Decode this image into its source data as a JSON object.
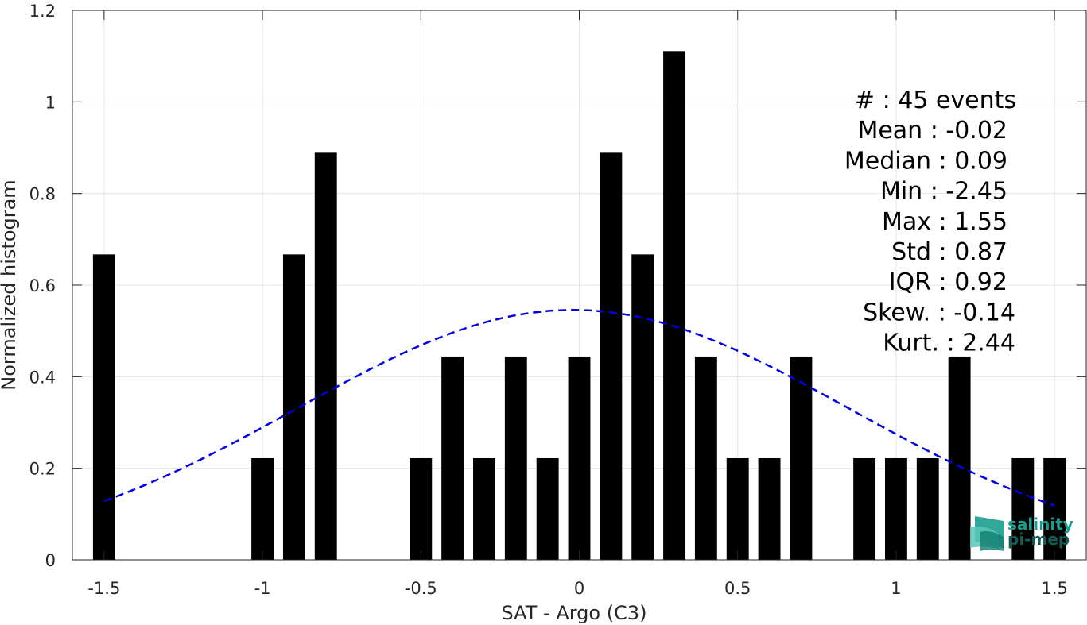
{
  "chart_data": {
    "type": "bar",
    "xlabel": "SAT - Argo (C3)",
    "ylabel": "Normalized histogram",
    "xlim": [
      -1.6,
      1.6
    ],
    "ylim": [
      0,
      1.2
    ],
    "xticks": [
      -1.5,
      -1,
      -0.5,
      0,
      0.5,
      1,
      1.5
    ],
    "xtick_labels": [
      "-1.5",
      "-1",
      "-0.5",
      "0",
      "0.5",
      "1",
      "1.5"
    ],
    "yticks": [
      0,
      0.2,
      0.4,
      0.6,
      0.8,
      1,
      1.2
    ],
    "ytick_labels": [
      "0",
      "0.2",
      "0.4",
      "0.6",
      "0.8",
      "1",
      "1.2"
    ],
    "grid": true,
    "bar_width": 0.07,
    "bars": [
      {
        "x": -1.5,
        "value": 0.667
      },
      {
        "x": -1.0,
        "value": 0.222
      },
      {
        "x": -0.9,
        "value": 0.667
      },
      {
        "x": -0.8,
        "value": 0.889
      },
      {
        "x": -0.5,
        "value": 0.222
      },
      {
        "x": -0.4,
        "value": 0.444
      },
      {
        "x": -0.3,
        "value": 0.222
      },
      {
        "x": -0.2,
        "value": 0.444
      },
      {
        "x": -0.1,
        "value": 0.222
      },
      {
        "x": 0.0,
        "value": 0.444
      },
      {
        "x": 0.1,
        "value": 0.889
      },
      {
        "x": 0.2,
        "value": 0.667
      },
      {
        "x": 0.3,
        "value": 1.111
      },
      {
        "x": 0.4,
        "value": 0.444
      },
      {
        "x": 0.5,
        "value": 0.222
      },
      {
        "x": 0.6,
        "value": 0.222
      },
      {
        "x": 0.7,
        "value": 0.444
      },
      {
        "x": 0.9,
        "value": 0.222
      },
      {
        "x": 1.0,
        "value": 0.222
      },
      {
        "x": 1.1,
        "value": 0.222
      },
      {
        "x": 1.2,
        "value": 0.444
      },
      {
        "x": 1.4,
        "value": 0.222
      },
      {
        "x": 1.5,
        "value": 0.222
      }
    ],
    "fit_curve": {
      "kind": "gaussian",
      "mean": -0.02,
      "std": 0.87,
      "x_range": [
        -1.5,
        1.5
      ],
      "color": "#0000e6",
      "style": "dashed"
    },
    "bar_color": "#000000",
    "stats": [
      "#  : 45 events",
      "Mean : -0.02",
      "Median : 0.09",
      "Min : -2.45",
      "Max : 1.55",
      "Std : 0.87",
      "IQR : 0.92",
      "Skew. : -0.14",
      "Kurt. : 2.44"
    ]
  },
  "logo": {
    "line1": "salinity",
    "line2": "pi-mep",
    "color_main": "#1a9e8f",
    "color_dark": "#145c55"
  }
}
